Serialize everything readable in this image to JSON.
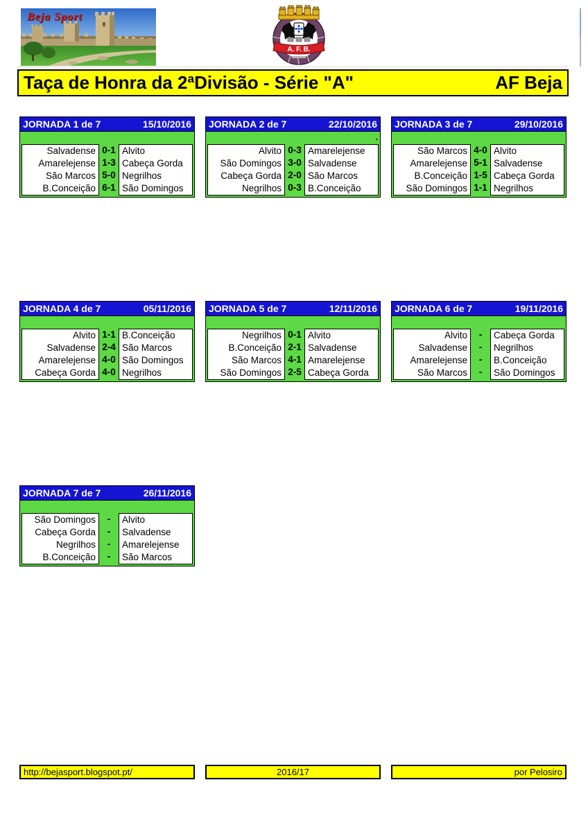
{
  "header": {
    "photo_caption": "Beja Sport",
    "logo_initials": "A. F. B.",
    "title": "Taça de Honra da 2ªDivisão - Série \"A\"",
    "association": "AF Beja"
  },
  "colors": {
    "jornada_header_blue": "#1414d2",
    "score_bar_green": "#5cd944",
    "banner_yellow": "#ffff00",
    "crest_plum": "#6e4366",
    "crest_red": "#d41f26",
    "crest_gold": "#e3b31e",
    "caption_red": "#c41f1f"
  },
  "jornadas": [
    {
      "title": "JORNADA 1 de 7",
      "date": "15/10/2016",
      "note": "",
      "matches": [
        {
          "home": "Salvadense",
          "score": "0-1",
          "away": "Alvito"
        },
        {
          "home": "Amarelejense",
          "score": "1-3",
          "away": "Cabeça Gorda"
        },
        {
          "home": "São Marcos",
          "score": "5-0",
          "away": "Negrilhos"
        },
        {
          "home": "B.Conceição",
          "score": "6-1",
          "away": "São Domingos"
        }
      ]
    },
    {
      "title": "JORNADA 2 de 7",
      "date": "22/10/2016",
      "note": ".",
      "matches": [
        {
          "home": "Alvito",
          "score": "0-3",
          "away": "Amarelejense"
        },
        {
          "home": "São Domingos",
          "score": "3-0",
          "away": "Salvadense"
        },
        {
          "home": "Cabeça Gorda",
          "score": "2-0",
          "away": "São Marcos"
        },
        {
          "home": "Negrilhos",
          "score": "0-3",
          "away": "B.Conceição"
        }
      ]
    },
    {
      "title": "JORNADA 3 de 7",
      "date": "29/10/2016",
      "note": "",
      "matches": [
        {
          "home": "São Marcos",
          "score": "4-0",
          "away": "Alvito"
        },
        {
          "home": "Amarelejense",
          "score": "5-1",
          "away": "Salvadense"
        },
        {
          "home": "B.Conceição",
          "score": "1-5",
          "away": "Cabeça Gorda"
        },
        {
          "home": "São Domingos",
          "score": "1-1",
          "away": "Negrilhos"
        }
      ]
    },
    {
      "title": "JORNADA 4 de 7",
      "date": "05/11/2016",
      "note": "",
      "matches": [
        {
          "home": "Alvito",
          "score": "1-1",
          "away": "B.Conceição"
        },
        {
          "home": "Salvadense",
          "score": "2-4",
          "away": "São Marcos"
        },
        {
          "home": "Amarelejense",
          "score": "4-0",
          "away": "São Domingos"
        },
        {
          "home": "Cabeça Gorda",
          "score": "4-0",
          "away": "Negrilhos"
        }
      ]
    },
    {
      "title": "JORNADA 5 de 7",
      "date": "12/11/2016",
      "note": "",
      "matches": [
        {
          "home": "Negrilhos",
          "score": "0-1",
          "away": "Alvito"
        },
        {
          "home": "B.Conceição",
          "score": "2-1",
          "away": "Salvadense"
        },
        {
          "home": "São Marcos",
          "score": "4-1",
          "away": "Amarelejense"
        },
        {
          "home": "São Domingos",
          "score": "2-5",
          "away": "Cabeça Gorda"
        }
      ]
    },
    {
      "title": "JORNADA 6 de 7",
      "date": "19/11/2016",
      "note": "",
      "matches": [
        {
          "home": "Alvito",
          "score": "-",
          "away": "Cabeça Gorda"
        },
        {
          "home": "Salvadense",
          "score": "-",
          "away": "Negrilhos"
        },
        {
          "home": "Amarelejense",
          "score": "-",
          "away": "B.Conceição"
        },
        {
          "home": "São Marcos",
          "score": "-",
          "away": "São Domingos"
        }
      ]
    },
    {
      "title": "JORNADA 7 de 7",
      "date": "26/11/2016",
      "note": "",
      "matches": [
        {
          "home": "São Domingos",
          "score": "-",
          "away": "Alvito"
        },
        {
          "home": "Cabeça Gorda",
          "score": "-",
          "away": "Salvadense"
        },
        {
          "home": "Negrilhos",
          "score": "-",
          "away": "Amarelejense"
        },
        {
          "home": "B.Conceição",
          "score": "-",
          "away": "São Marcos"
        }
      ]
    }
  ],
  "footer": {
    "url": "http://bejasport.blogspot.pt/",
    "season": "2016/17",
    "credit": "por Pelosiro"
  }
}
